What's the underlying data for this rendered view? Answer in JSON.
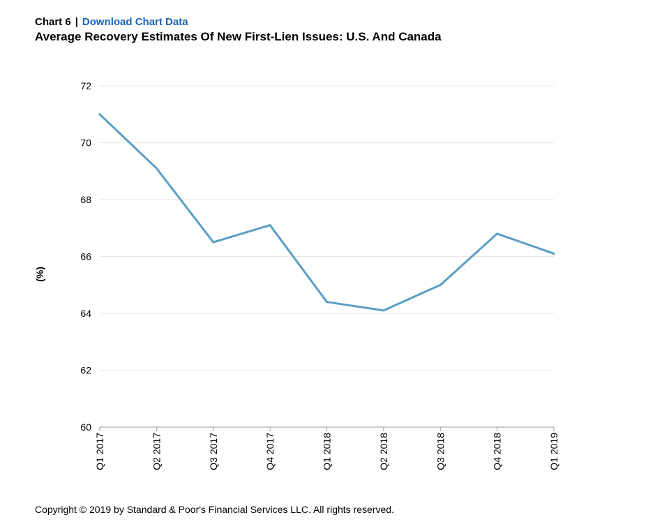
{
  "header": {
    "chart_number": "Chart 6",
    "separator": "|",
    "download_link": "Download Chart Data",
    "title": "Average Recovery Estimates Of New First-Lien Issues: U.S. And Canada"
  },
  "footer": {
    "copyright": "Copyright © 2019 by Standard & Poor's Financial Services LLC. All rights reserved."
  },
  "colors": {
    "line": "#5a9ec4",
    "grid": "#e6e6e6",
    "axis": "#9a9a9a",
    "link": "#1a66b3"
  },
  "chart_data": {
    "type": "line",
    "title": "Average Recovery Estimates Of New First-Lien Issues: U.S. And Canada",
    "xlabel": "",
    "ylabel": "(%)",
    "ylim": [
      60,
      72
    ],
    "yticks": [
      60,
      62,
      64,
      66,
      68,
      70,
      72
    ],
    "grid": true,
    "legend": "none",
    "categories": [
      "Q1 2017",
      "Q2 2017",
      "Q3 2017",
      "Q4 2017",
      "Q1 2018",
      "Q2 2018",
      "Q3 2018",
      "Q4 2018",
      "Q1 2019"
    ],
    "series": [
      {
        "values": [
          71.0,
          69.1,
          66.5,
          67.1,
          64.4,
          64.1,
          65.0,
          66.8,
          66.1
        ]
      }
    ]
  }
}
